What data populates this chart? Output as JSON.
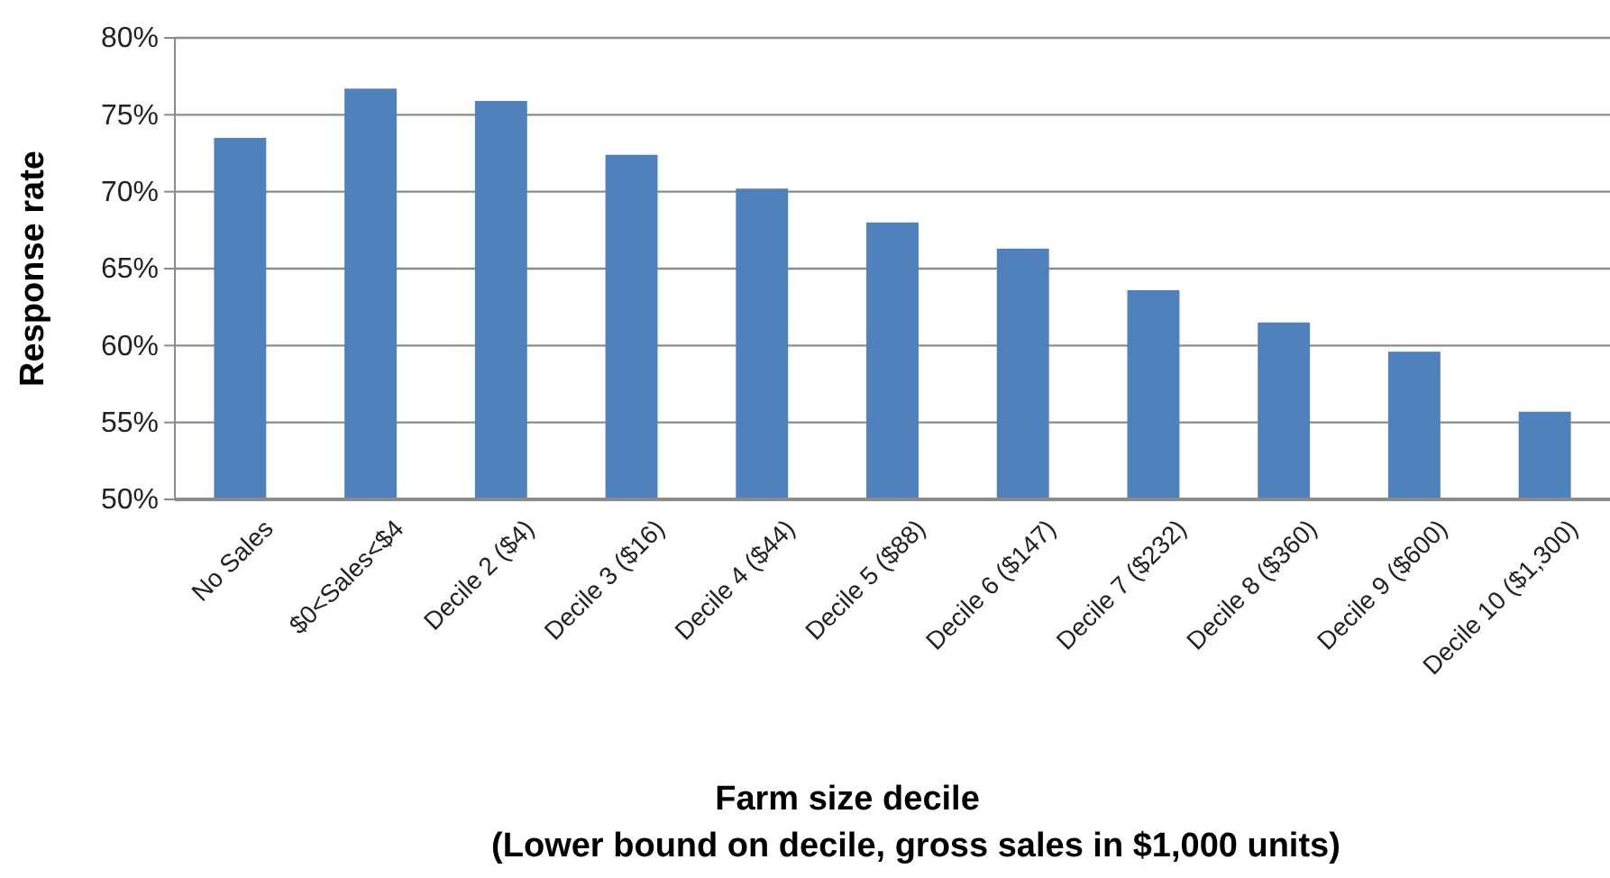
{
  "chart_data": {
    "type": "bar",
    "categories": [
      "No Sales",
      "$0<Sales<$4",
      "Decile 2 ($4)",
      "Decile 3 ($16)",
      "Decile 4 ($44)",
      "Decile 5 ($88)",
      "Decile 6 ($147)",
      "Decile 7 ($232)",
      "Decile 8 ($360)",
      "Decile 9 ($600)",
      "Decile 10 ($1,300)"
    ],
    "values": [
      73.5,
      76.7,
      75.9,
      72.4,
      70.2,
      68.0,
      66.3,
      63.6,
      61.5,
      59.6,
      55.7
    ],
    "color": "#4f81bd",
    "xlabel": "Farm size decile\n(Lower bound on decile, gross sales in $1,000 units)",
    "ylabel": "Response rate",
    "ylim": [
      50,
      80
    ],
    "yticks": [
      {
        "value": 50,
        "label": "50%"
      },
      {
        "value": 55,
        "label": "55%"
      },
      {
        "value": 60,
        "label": "60%"
      },
      {
        "value": 65,
        "label": "65%"
      },
      {
        "value": 70,
        "label": "70%"
      },
      {
        "value": 75,
        "label": "75%"
      },
      {
        "value": 80,
        "label": "80%"
      }
    ],
    "grid": "y"
  }
}
